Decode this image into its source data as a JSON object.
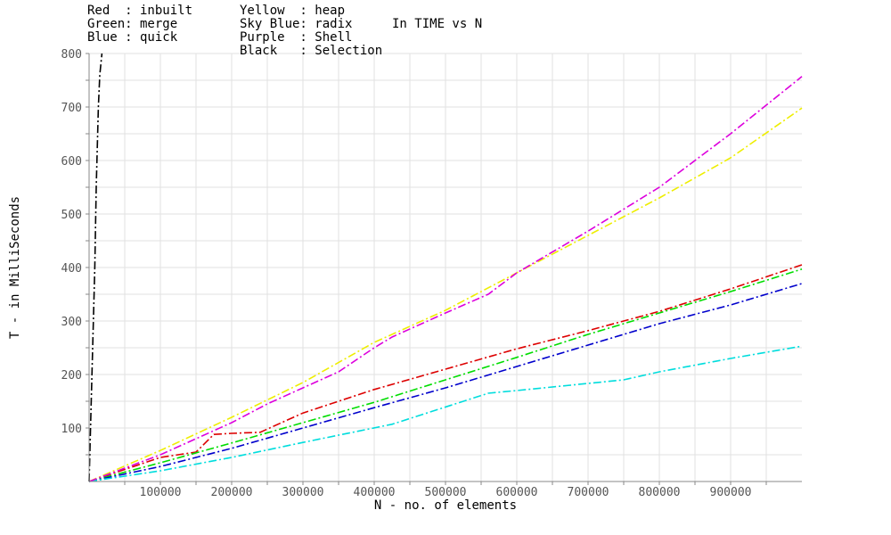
{
  "chart_data": {
    "type": "line",
    "title": "In TIME vs N",
    "xlabel": "N - no. of elements",
    "ylabel": "T - in MilliSeconds",
    "xlim": [
      0,
      1000000
    ],
    "ylim": [
      0,
      800
    ],
    "grid": true,
    "legend_position": "top",
    "x_ticks": [
      "100000",
      "200000",
      "300000",
      "400000",
      "500000",
      "600000",
      "700000",
      "800000",
      "900000"
    ],
    "y_ticks": [
      "100",
      "200",
      "300",
      "400",
      "500",
      "600",
      "700",
      "800"
    ],
    "legend": {
      "col1": [
        "Red  : inbuilt",
        "Green: merge",
        "Blue : quick"
      ],
      "col2": [
        "Yellow  : heap",
        "Sky Blue: radix",
        "Purple  : Shell",
        "Black   : Selection"
      ]
    },
    "series": [
      {
        "name": "inbuilt",
        "color": "#dd0000",
        "x": [
          0,
          100000,
          150000,
          175000,
          200000,
          240000,
          300000,
          400000,
          500000,
          600000,
          700000,
          800000,
          900000,
          1000000
        ],
        "y": [
          0,
          45,
          55,
          88,
          90,
          92,
          128,
          172,
          210,
          248,
          282,
          318,
          360,
          405
        ]
      },
      {
        "name": "merge",
        "color": "#00dd00",
        "x": [
          0,
          100000,
          200000,
          300000,
          400000,
          500000,
          600000,
          700000,
          800000,
          900000,
          1000000
        ],
        "y": [
          0,
          35,
          72,
          110,
          148,
          190,
          232,
          275,
          315,
          355,
          397
        ]
      },
      {
        "name": "quick",
        "color": "#0000cc",
        "x": [
          0,
          100000,
          200000,
          300000,
          400000,
          500000,
          600000,
          700000,
          800000,
          900000,
          1000000
        ],
        "y": [
          0,
          28,
          62,
          100,
          138,
          175,
          215,
          255,
          295,
          330,
          370
        ]
      },
      {
        "name": "heap",
        "color": "#eeee00",
        "x": [
          0,
          100000,
          200000,
          300000,
          400000,
          500000,
          600000,
          700000,
          800000,
          900000,
          1000000
        ],
        "y": [
          0,
          58,
          120,
          185,
          260,
          320,
          390,
          460,
          530,
          605,
          698
        ]
      },
      {
        "name": "radix",
        "color": "#00dddd",
        "x": [
          0,
          100000,
          200000,
          300000,
          425000,
          560000,
          600000,
          750000,
          800000,
          900000,
          1000000
        ],
        "y": [
          0,
          20,
          45,
          73,
          107,
          165,
          170,
          190,
          205,
          230,
          253
        ]
      },
      {
        "name": "Shell",
        "color": "#dd00dd",
        "x": [
          0,
          100000,
          150000,
          200000,
          250000,
          300000,
          350000,
          400000,
          425000,
          500000,
          560000,
          600000,
          700000,
          800000,
          900000,
          1000000
        ],
        "y": [
          0,
          50,
          80,
          110,
          145,
          175,
          205,
          250,
          270,
          315,
          350,
          390,
          468,
          550,
          650,
          757
        ]
      },
      {
        "name": "Selection",
        "color": "#000000",
        "x": [
          0,
          2000,
          5000,
          8000,
          10000,
          13000,
          15000,
          18000
        ],
        "y": [
          0,
          100,
          250,
          400,
          550,
          700,
          760,
          800
        ]
      }
    ]
  }
}
